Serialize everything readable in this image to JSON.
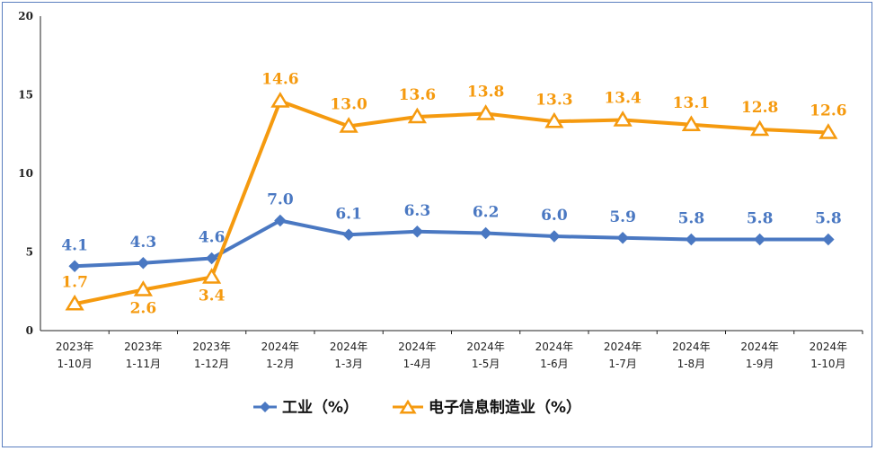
{
  "chart_data": {
    "type": "line",
    "categories": [
      [
        "2023年",
        "1-10月"
      ],
      [
        "2023年",
        "1-11月"
      ],
      [
        "2023年",
        "1-12月"
      ],
      [
        "2024年",
        "1-2月"
      ],
      [
        "2024年",
        "1-3月"
      ],
      [
        "2024年",
        "1-4月"
      ],
      [
        "2024年",
        "1-5月"
      ],
      [
        "2024年",
        "1-6月"
      ],
      [
        "2024年",
        "1-7月"
      ],
      [
        "2024年",
        "1-8月"
      ],
      [
        "2024年",
        "1-9月"
      ],
      [
        "2024年",
        "1-10月"
      ]
    ],
    "series": [
      {
        "name": "工业（%）",
        "color": "#4a78c2",
        "marker": "diamond",
        "values": [
          4.1,
          4.3,
          4.6,
          7.0,
          6.1,
          6.3,
          6.2,
          6.0,
          5.9,
          5.8,
          5.8,
          5.8
        ],
        "labels": [
          "4.1",
          "4.3",
          "4.6",
          "7.0",
          "6.1",
          "6.3",
          "6.2",
          "6.0",
          "5.9",
          "5.8",
          "5.8",
          "5.8"
        ]
      },
      {
        "name": "电子信息制造业（%）",
        "color": "#f59a0f",
        "marker": "triangle",
        "values": [
          1.7,
          2.6,
          3.4,
          14.6,
          13.0,
          13.6,
          13.8,
          13.3,
          13.4,
          13.1,
          12.8,
          12.6
        ],
        "labels": [
          "1.7",
          "2.6",
          "3.4",
          "14.6",
          "13.0",
          "13.6",
          "13.8",
          "13.3",
          "13.4",
          "13.1",
          "12.8",
          "12.6"
        ]
      }
    ],
    "yticks": [
      "0",
      "5",
      "10",
      "15",
      "20"
    ],
    "ylim": [
      0,
      20
    ],
    "grid": false,
    "legend_position": "bottom"
  }
}
